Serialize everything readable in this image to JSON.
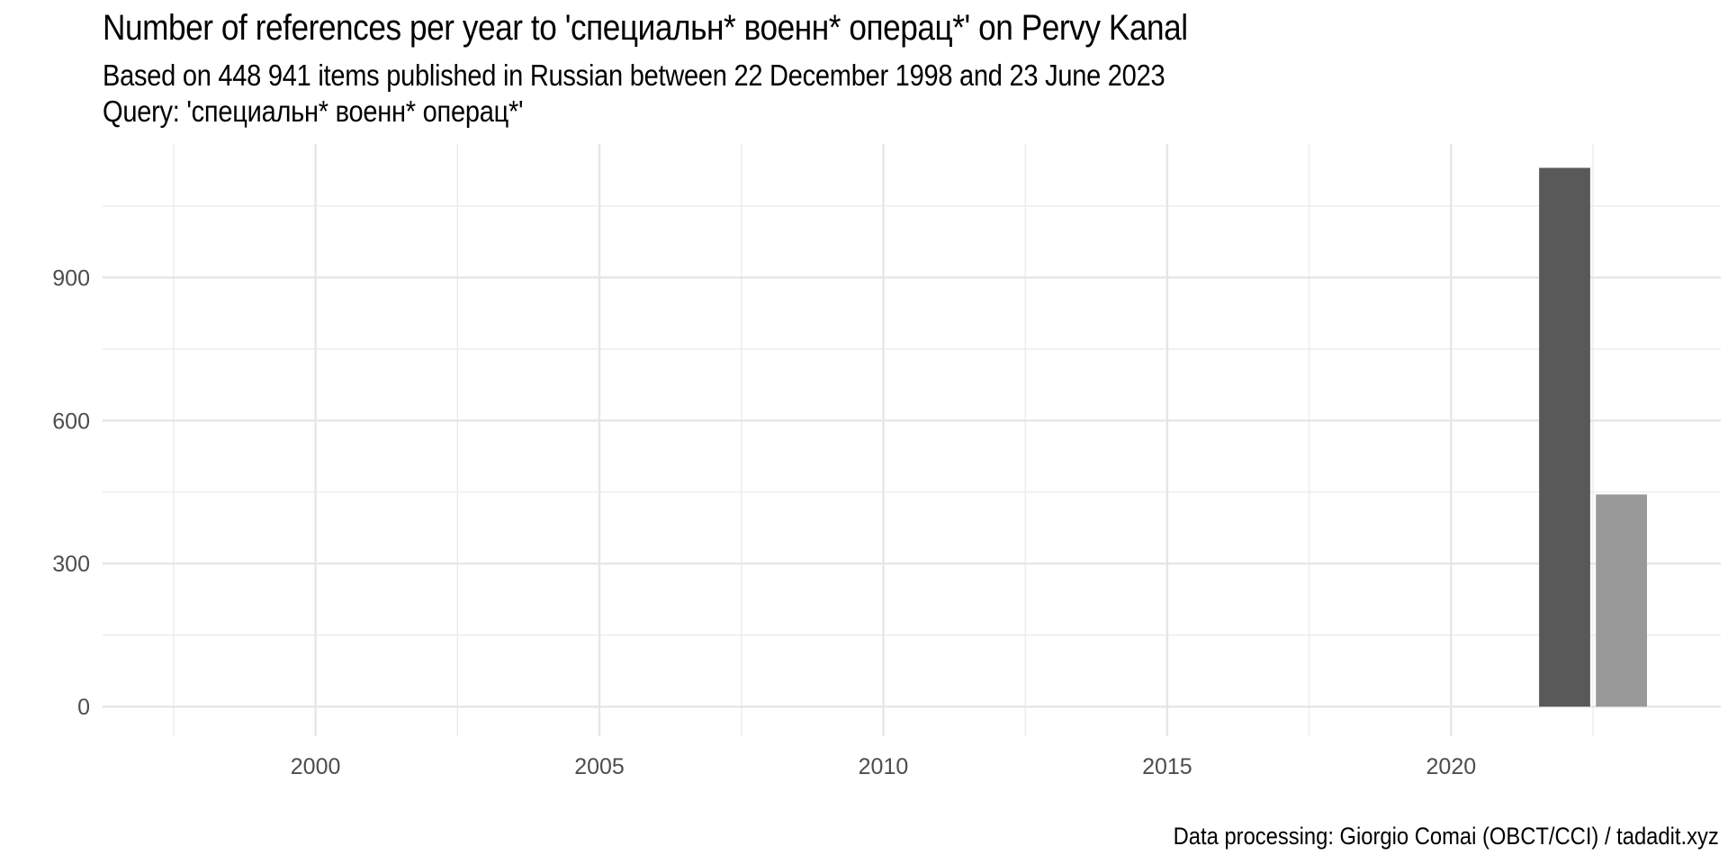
{
  "chart_data": {
    "type": "bar",
    "title": "Number of references per year to 'специальн* военн* операц*' on Pervy Kanal",
    "subtitle": [
      "Based on 448 941 items published in Russian between 22 December 1998 and 23 June 2023",
      "Query: 'специальн* военн* операц*'"
    ],
    "caption": "Data processing: Giorgio Comai (OBCT/CCI) / tadadit.xyz",
    "xlabel": "",
    "ylabel": "",
    "x": [
      2022,
      2023
    ],
    "values": [
      1130,
      445
    ],
    "bar_colors": [
      "#595959",
      "#999999"
    ],
    "xlim": [
      1996.25,
      2024.75
    ],
    "ylim": [
      -62,
      1180
    ],
    "x_ticks": [
      2000,
      2005,
      2010,
      2015,
      2020
    ],
    "y_ticks": [
      0,
      300,
      600,
      900
    ],
    "grid": true,
    "legend": "none"
  }
}
